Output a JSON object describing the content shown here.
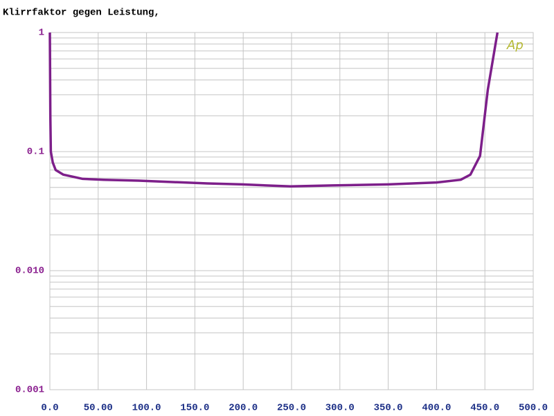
{
  "chart_data": {
    "type": "line",
    "title": "Klirrfaktor gegen Leistung,",
    "annotation": "Ap",
    "annotation_color": "#b5b832",
    "x": [
      0,
      0.5,
      1,
      3,
      6,
      14,
      34,
      56,
      92,
      163,
      199,
      249,
      292,
      350,
      400,
      425,
      435,
      445,
      453,
      463
    ],
    "series": [
      {
        "color": "#7d1f8a",
        "values": [
          1,
          0.2,
          0.1,
          0.081,
          0.07,
          0.064,
          0.059,
          0.058,
          0.057,
          0.054,
          0.053,
          0.051,
          0.052,
          0.053,
          0.055,
          0.058,
          0.064,
          0.092,
          0.33,
          1
        ]
      }
    ],
    "xlim": [
      0,
      500
    ],
    "xticks": [
      {
        "value": 0,
        "label": "0.0"
      },
      {
        "value": 50,
        "label": "50.00"
      },
      {
        "value": 100,
        "label": "100.0"
      },
      {
        "value": 150,
        "label": "150.0"
      },
      {
        "value": 200,
        "label": "200.0"
      },
      {
        "value": 250,
        "label": "250.0"
      },
      {
        "value": 300,
        "label": "300.0"
      },
      {
        "value": 350,
        "label": "350.0"
      },
      {
        "value": 400,
        "label": "400.0"
      },
      {
        "value": 450,
        "label": "450.0"
      },
      {
        "value": 500,
        "label": "500.0"
      }
    ],
    "ylim": [
      0.001,
      1
    ],
    "yticks": [
      1,
      0.1,
      {
        "value": 0.01,
        "label": "0.010"
      },
      0.001
    ],
    "ylog": true,
    "grid": true,
    "ytick_color": "#8a1f8f",
    "xtick_color": "#1b2e86",
    "grid_color": "#c4c4c4"
  }
}
